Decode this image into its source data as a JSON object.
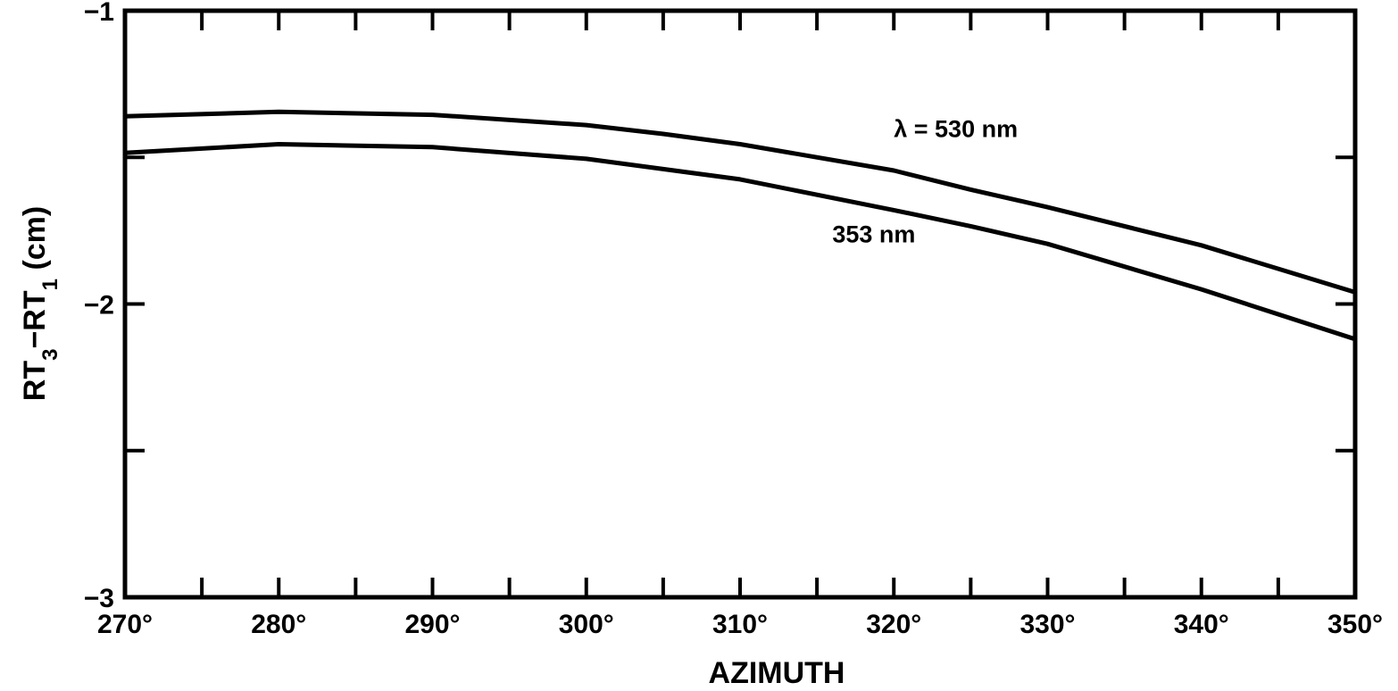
{
  "chart_data": {
    "type": "line",
    "title": "",
    "xlabel": "AZIMUTH",
    "ylabel": {
      "main": "RT",
      "sub1": "3",
      "mid": "−RT",
      "sub2": "1",
      "unit": " (cm)"
    },
    "xlim": [
      270,
      350
    ],
    "ylim": [
      -3,
      -1
    ],
    "x_ticks": [
      270,
      280,
      290,
      300,
      310,
      320,
      330,
      340,
      350
    ],
    "x_tick_labels": [
      "270°",
      "280°",
      "290°",
      "300°",
      "310°",
      "320°",
      "330°",
      "340°",
      "350°"
    ],
    "x_minor_ticks": [
      275,
      285,
      295,
      305,
      315,
      325,
      335,
      345
    ],
    "y_ticks": [
      -3,
      -2.5,
      -2,
      -1.5,
      -1
    ],
    "y_tick_labels": [
      "−3",
      "",
      "−2",
      "",
      "−1"
    ],
    "grid": false,
    "series": [
      {
        "name": "λ = 530 nm",
        "x": [
          270,
          280,
          290,
          300,
          305,
          310,
          320,
          325,
          330,
          340,
          350
        ],
        "y": [
          -1.36,
          -1.345,
          -1.355,
          -1.39,
          -1.42,
          -1.455,
          -1.545,
          -1.61,
          -1.67,
          -1.8,
          -1.96
        ]
      },
      {
        "name": "353 nm",
        "x": [
          270,
          280,
          290,
          300,
          305,
          310,
          320,
          325,
          330,
          340,
          350
        ],
        "y": [
          -1.485,
          -1.455,
          -1.465,
          -1.505,
          -1.54,
          -1.575,
          -1.68,
          -1.735,
          -1.795,
          -1.95,
          -2.12
        ]
      }
    ],
    "annotations": [
      {
        "text": "λ = 530 nm",
        "series": 0,
        "x": 320,
        "y": -1.4
      },
      {
        "text": "353 nm",
        "series": 1,
        "x": 316,
        "y": -1.76
      }
    ]
  }
}
